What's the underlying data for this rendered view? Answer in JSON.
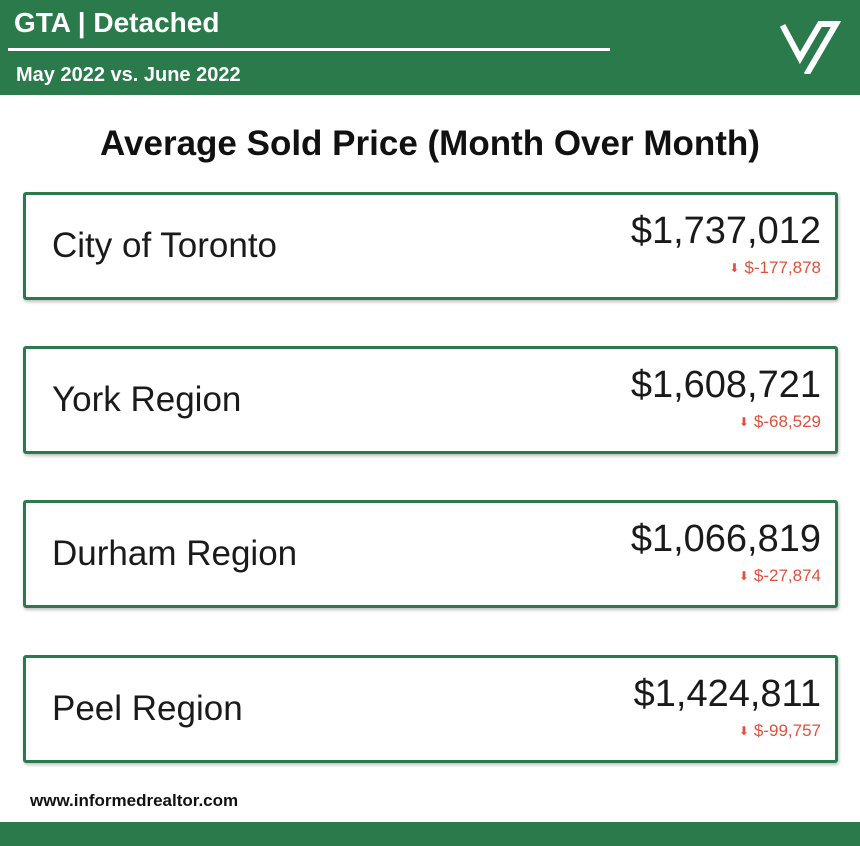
{
  "header": {
    "title": "GTA | Detached",
    "subtitle": "May 2022 vs. June 2022"
  },
  "main_title": "Average Sold Price (Month Over Month)",
  "regions": [
    {
      "name": "City of Toronto",
      "price": "$1,737,012",
      "change": "$-177,878",
      "direction": "down"
    },
    {
      "name": "York Region",
      "price": "$1,608,721",
      "change": "$-68,529",
      "direction": "down"
    },
    {
      "name": "Durham Region",
      "price": "$1,066,819",
      "change": "$-27,874",
      "direction": "down"
    },
    {
      "name": "Peel Region",
      "price": "$1,424,811",
      "change": "$-99,757",
      "direction": "down"
    }
  ],
  "footer": {
    "website": "www.informedrealtor.com"
  },
  "colors": {
    "brand_green": "#2b7a4b",
    "decrease_red": "#e0503c"
  },
  "icons": {
    "logo": "checkmark-logo-icon",
    "change": "arrow-down-icon"
  }
}
